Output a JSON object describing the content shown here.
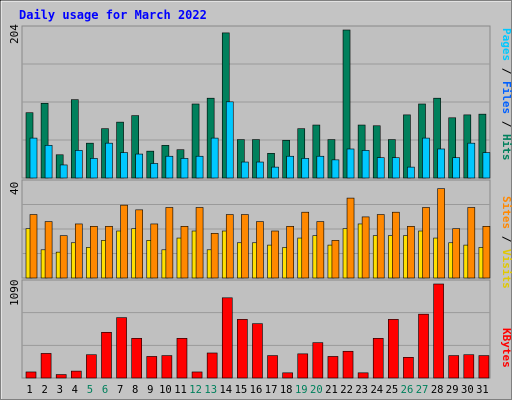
{
  "chart_data": [
    {
      "type": "bar",
      "title": "Daily usage for March 2022",
      "panel": "hits-files-pages",
      "y_max_label": "204",
      "ylim": [
        0,
        204
      ],
      "legend": {
        "pages": "Pages",
        "files": "Files",
        "hits": "Hits",
        "sep": "/"
      },
      "colors": {
        "hits": "#00805c",
        "files": "#00c8ff",
        "pages": "#00e0ff"
      },
      "categories": [
        "1",
        "2",
        "3",
        "4",
        "5",
        "6",
        "7",
        "8",
        "9",
        "10",
        "11",
        "12",
        "13",
        "14",
        "15",
        "16",
        "17",
        "18",
        "19",
        "20",
        "21",
        "22",
        "23",
        "24",
        "25",
        "26",
        "27",
        "28",
        "29",
        "30",
        "31"
      ],
      "weekend_days": [
        "5",
        "6",
        "12",
        "13",
        "19",
        "20",
        "26",
        "27"
      ],
      "series": [
        {
          "name": "Hits",
          "values": [
            90,
            103,
            32,
            108,
            48,
            68,
            77,
            86,
            37,
            45,
            39,
            102,
            110,
            200,
            53,
            53,
            34,
            52,
            68,
            73,
            53,
            204,
            73,
            72,
            53,
            87,
            102,
            110,
            83,
            87,
            88
          ]
        },
        {
          "name": "Files",
          "values": [
            55,
            45,
            18,
            38,
            27,
            48,
            35,
            33,
            20,
            30,
            27,
            30,
            55,
            105,
            22,
            22,
            15,
            30,
            27,
            30,
            25,
            40,
            38,
            28,
            28,
            15,
            55,
            40,
            28,
            48,
            35
          ]
        },
        {
          "name": "Pages",
          "values": [
            20,
            15,
            5,
            12,
            10,
            12,
            15,
            12,
            8,
            10,
            8,
            10,
            15,
            30,
            8,
            8,
            5,
            10,
            8,
            10,
            8,
            15,
            10,
            8,
            8,
            5,
            15,
            12,
            8,
            12,
            10
          ]
        }
      ]
    },
    {
      "type": "bar",
      "panel": "visits-sites",
      "y_max_label": "40",
      "ylim": [
        0,
        40
      ],
      "legend": {
        "sites": "Sites",
        "visits": "Visits",
        "sep": "/"
      },
      "colors": {
        "visits": "#ffe000",
        "sites": "#ff8800"
      },
      "categories": [
        "1",
        "2",
        "3",
        "4",
        "5",
        "6",
        "7",
        "8",
        "9",
        "10",
        "11",
        "12",
        "13",
        "14",
        "15",
        "16",
        "17",
        "18",
        "19",
        "20",
        "21",
        "22",
        "23",
        "24",
        "25",
        "26",
        "27",
        "28",
        "29",
        "30",
        "31"
      ],
      "series": [
        {
          "name": "Visits",
          "values": [
            21,
            12,
            11,
            15,
            13,
            16,
            20,
            21,
            16,
            12,
            17,
            20,
            12,
            20,
            15,
            15,
            14,
            13,
            17,
            18,
            14,
            21,
            23,
            18,
            18,
            18,
            20,
            17,
            15,
            14,
            13
          ]
        },
        {
          "name": "Sites",
          "values": [
            27,
            24,
            18,
            23,
            22,
            22,
            31,
            29,
            23,
            30,
            22,
            30,
            19,
            27,
            27,
            24,
            20,
            22,
            28,
            24,
            16,
            34,
            26,
            27,
            28,
            22,
            30,
            38,
            21,
            30,
            22
          ]
        }
      ]
    },
    {
      "type": "bar",
      "panel": "kbytes",
      "y_max_label": "1090",
      "ylim": [
        0,
        1090
      ],
      "legend": {
        "kbytes": "KBytes"
      },
      "colors": {
        "kbytes": "#ff0000"
      },
      "categories": [
        "1",
        "2",
        "3",
        "4",
        "5",
        "6",
        "7",
        "8",
        "9",
        "10",
        "11",
        "12",
        "13",
        "14",
        "15",
        "16",
        "17",
        "18",
        "19",
        "20",
        "21",
        "22",
        "23",
        "24",
        "25",
        "26",
        "27",
        "28",
        "29",
        "30",
        "31"
      ],
      "series": [
        {
          "name": "KBytes",
          "values": [
            70,
            285,
            40,
            80,
            270,
            530,
            700,
            460,
            250,
            260,
            460,
            70,
            290,
            930,
            680,
            630,
            260,
            60,
            280,
            410,
            250,
            310,
            60,
            460,
            680,
            240,
            740,
            1090,
            260,
            270,
            260
          ]
        }
      ]
    }
  ]
}
